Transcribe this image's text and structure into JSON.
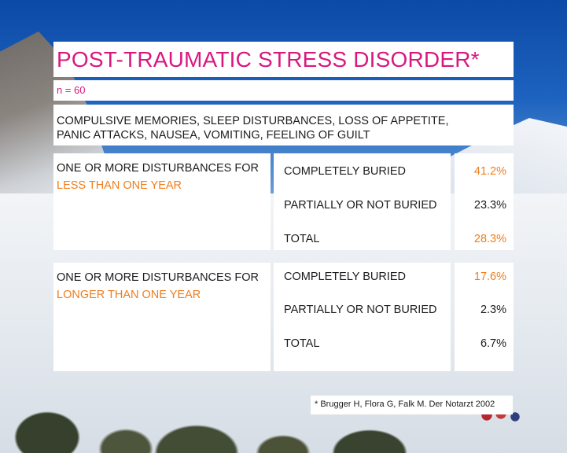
{
  "title": "POST-TRAUMATIC STRESS DISORDER*",
  "sample_size": "n = 60",
  "symptoms": {
    "line1": "COMPULSIVE MEMORIES, SLEEP DISTURBANCES, LOSS OF APPETITE,",
    "line2": "PANIC ATTACKS, NAUSEA, VOMITING, FEELING OF GUILT"
  },
  "groups": [
    {
      "label_line1": "ONE OR MORE DISTURBANCES FOR",
      "label_line2": "LESS THAN ONE YEAR",
      "rows": [
        {
          "category": "COMPLETELY BURIED",
          "value": "41.2%",
          "highlight": true
        },
        {
          "category": "PARTIALLY OR NOT BURIED",
          "value": "23.3%",
          "highlight": false
        },
        {
          "category": "TOTAL",
          "value": "28.3%",
          "highlight": true
        }
      ]
    },
    {
      "label_line1": "ONE OR MORE DISTURBANCES FOR",
      "label_line2": "LONGER THAN ONE YEAR",
      "rows": [
        {
          "category": "COMPLETELY BURIED",
          "value": "17.6%",
          "highlight": true
        },
        {
          "category": "PARTIALLY OR NOT BURIED",
          "value": "2.3%",
          "highlight": false
        },
        {
          "category": "TOTAL",
          "value": "6.7%",
          "highlight": false
        }
      ]
    }
  ],
  "footnote": "* Brugger H, Flora G, Falk M. Der Notarzt 2002",
  "colors": {
    "title_magenta": "#d9187f",
    "highlight_orange": "#ee7d1e",
    "text_dark": "#1c1c1c",
    "panel_white": "#ffffff"
  }
}
